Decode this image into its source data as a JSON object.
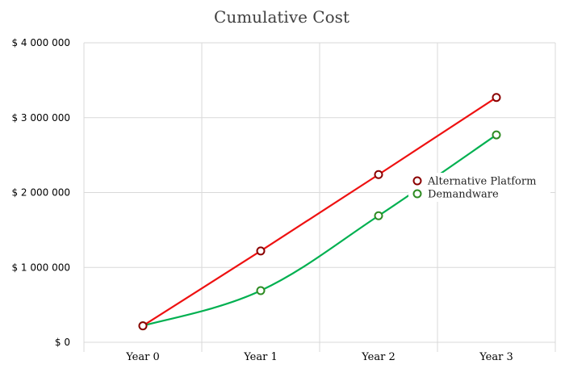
{
  "chart_data": {
    "type": "line",
    "title": "Cumulative Cost",
    "categories": [
      "Year 0",
      "Year 1",
      "Year 2",
      "Year 3"
    ],
    "y_ticks": [
      "$ 0",
      "$ 1 000 000",
      "$ 2 000 000",
      "$ 3 000 000",
      "$ 4 000 000"
    ],
    "ylim": [
      0,
      4000000
    ],
    "grid": true,
    "legend_position": "right",
    "series": [
      {
        "name": "Alternative Platform",
        "values": [
          220000,
          1220000,
          2240000,
          3270000
        ],
        "line_color": "#ee1111",
        "marker_color": "#8b0000",
        "smooth": false
      },
      {
        "name": "Demandware",
        "values": [
          220000,
          690000,
          1690000,
          2770000
        ],
        "line_color": "#00b050",
        "marker_color": "#2e8b22",
        "smooth": true
      }
    ]
  }
}
